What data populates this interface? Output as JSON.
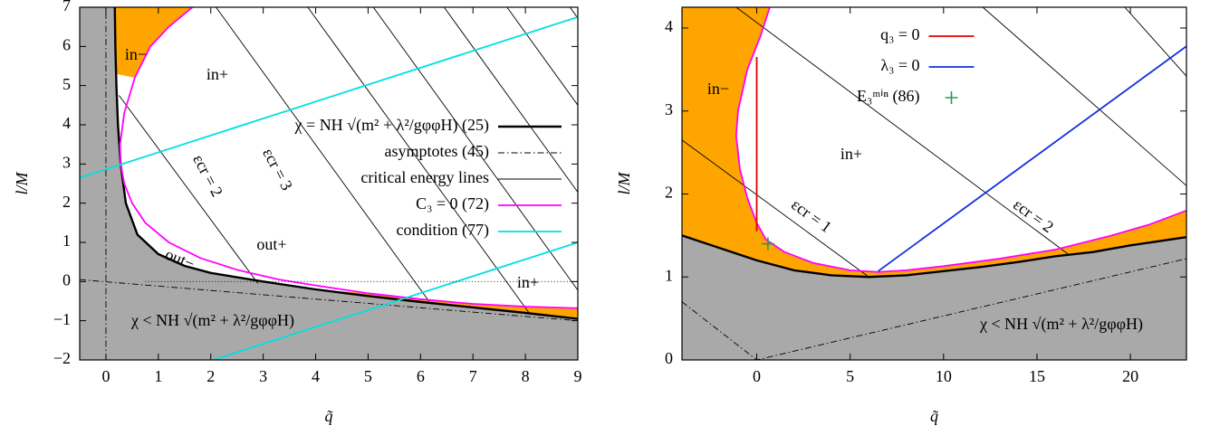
{
  "chart_data": [
    {
      "type": "line",
      "xlabel": "q̃",
      "ylabel": "l/M",
      "xlim": [
        -0.5,
        9
      ],
      "ylim": [
        -2,
        7
      ],
      "xticks": [
        0,
        1,
        2,
        3,
        4,
        5,
        6,
        7,
        8,
        9
      ],
      "yticks": [
        {
          "value": -2,
          "label": "−2"
        },
        {
          "value": -1,
          "label": "−1"
        },
        0,
        1,
        2,
        3,
        4,
        5,
        6,
        7
      ],
      "legend": "right",
      "regions": [
        {
          "color": "#ffa500",
          "x": [
            0.17,
            1.65,
            1.2,
            0.85,
            0.55,
            0.2
          ],
          "values": [
            7,
            7,
            6.5,
            6,
            5.2,
            5.3
          ]
        },
        {
          "color": "#ffa500",
          "x": [
            4.5,
            5,
            6,
            7,
            8,
            9,
            9,
            8,
            7,
            6,
            5,
            4.5
          ],
          "values": [
            -0.25,
            -0.3,
            -0.45,
            -0.57,
            -0.64,
            -0.68,
            -0.95,
            -0.8,
            -0.66,
            -0.52,
            -0.37,
            -0.29
          ]
        }
      ],
      "series": [
        {
          "name": "χ = NH √(m² + λ²/gφφH) (25)",
          "color": "#000000",
          "style": "thick",
          "fill": "#a9a9a9",
          "x": [
            0.17,
            0.18,
            0.2,
            0.23,
            0.28,
            0.38,
            0.6,
            1,
            1.5,
            2,
            3,
            4,
            5,
            6,
            7,
            8,
            9
          ],
          "values": [
            7,
            6,
            5,
            4,
            3,
            2,
            1.2,
            0.7,
            0.4,
            0.22,
            0,
            -0.2,
            -0.37,
            -0.52,
            -0.66,
            -0.8,
            -0.95
          ]
        },
        {
          "name": "asymptotes (45)",
          "color": "#000000",
          "style": "dashdot",
          "x": [
            0,
            0,
            null,
            -0.5,
            9
          ],
          "values": [
            -2,
            7,
            null,
            0.05,
            -1.0
          ]
        },
        {
          "name": "critical energy lines",
          "color": "#000000",
          "style": "thin",
          "x": [
            0.25,
            2.9,
            null,
            2.1,
            6.16,
            null,
            3.85,
            8.07,
            null,
            5.1,
            9,
            null,
            6.45,
            9,
            null,
            7.65,
            9,
            null,
            8.85,
            9
          ],
          "values": [
            4.75,
            -0.05,
            null,
            7,
            -0.5,
            null,
            7,
            -0.8,
            null,
            7,
            -0.22,
            null,
            7,
            2.28,
            null,
            7,
            4.5,
            null,
            7,
            6.72
          ]
        },
        {
          "name": "C₃ = 0 (72)",
          "color": "#ff00ff",
          "style": "medium",
          "x": [
            1.65,
            1.2,
            0.85,
            0.55,
            0.35,
            0.27,
            0.28,
            0.35,
            0.5,
            0.75,
            1.2,
            1.8,
            2.5,
            3.3,
            4,
            5,
            6,
            7,
            8,
            9
          ],
          "values": [
            7,
            6.5,
            6,
            5.2,
            4.3,
            3.5,
            3,
            2.5,
            2,
            1.5,
            1,
            0.6,
            0.3,
            0.05,
            -0.1,
            -0.3,
            -0.45,
            -0.57,
            -0.64,
            -0.68
          ]
        },
        {
          "name": "condition (77)",
          "color": "#00e0e0",
          "style": "medium",
          "x": [
            -0.5,
            9,
            null,
            2.05,
            9
          ],
          "values": [
            2.65,
            6.75,
            null,
            -2,
            1.0
          ]
        },
        {
          "color": "#000000",
          "style": "dotted",
          "x": [
            0.75,
            9
          ],
          "values": [
            0,
            0
          ]
        }
      ],
      "annotations": [
        "in−",
        "in+",
        "out+",
        "out−",
        "in+",
        "χ < NH √(m² + λ²/gφφH)",
        "εcr = 2",
        "εcr = 3"
      ]
    },
    {
      "type": "line",
      "xlabel": "q̃",
      "ylabel": "l/M",
      "xlim": [
        -4,
        23
      ],
      "ylim": [
        0,
        4.25
      ],
      "xticks": [
        0,
        5,
        10,
        15,
        20
      ],
      "yticks": [
        0,
        1,
        2,
        3,
        4
      ],
      "legend": "top",
      "regions": [
        {
          "color": "#ffa500",
          "x": [
            0.7,
            0.2,
            -0.5,
            -1,
            -1.1,
            -0.9,
            -0.5,
            0,
            0.5,
            1.5,
            3,
            5,
            6.5,
            8,
            10,
            13,
            16,
            19,
            21,
            23,
            23,
            20,
            18,
            16,
            14,
            12,
            10,
            8,
            6,
            4,
            2,
            0,
            -2,
            -4,
            -4
          ],
          "values": [
            4.25,
            3.9,
            3.5,
            3,
            2.7,
            2.3,
            1.95,
            1.65,
            1.45,
            1.3,
            1.17,
            1.08,
            1.06,
            1.08,
            1.13,
            1.22,
            1.33,
            1.5,
            1.63,
            1.8,
            1.48,
            1.38,
            1.3,
            1.25,
            1.18,
            1.12,
            1.07,
            1.02,
            1.0,
            1.02,
            1.08,
            1.2,
            1.35,
            1.5,
            4.25
          ]
        }
      ],
      "series": [
        {
          "color": "#000000",
          "style": "thick",
          "fill": "#a9a9a9",
          "x": [
            -4,
            -2,
            0,
            2,
            4,
            6,
            8,
            10,
            12,
            14,
            16,
            18,
            20,
            23
          ],
          "values": [
            1.5,
            1.35,
            1.2,
            1.08,
            1.02,
            1.0,
            1.02,
            1.07,
            1.12,
            1.18,
            1.25,
            1.3,
            1.38,
            1.48
          ]
        },
        {
          "color": "#000000",
          "style": "dashdot",
          "x": [
            -4,
            0,
            23
          ],
          "values": [
            0.7,
            0,
            1.22
          ]
        },
        {
          "color": "#000000",
          "style": "thin",
          "x": [
            -4,
            6,
            null,
            -1.1,
            16.7,
            null,
            12.1,
            23,
            null,
            19.7,
            23
          ],
          "values": [
            2.65,
            1.0,
            null,
            4.25,
            1.27,
            null,
            4.25,
            2.1,
            null,
            4.25,
            3.42
          ]
        },
        {
          "color": "#ff00ff",
          "style": "medium",
          "x": [
            0.7,
            0.2,
            -0.5,
            -1,
            -1.1,
            -0.9,
            -0.5,
            0,
            0.5,
            1.5,
            3,
            5,
            6.5,
            8,
            10,
            13,
            16,
            19,
            21,
            23
          ],
          "values": [
            4.25,
            3.9,
            3.5,
            3,
            2.7,
            2.3,
            1.95,
            1.65,
            1.45,
            1.3,
            1.17,
            1.08,
            1.06,
            1.08,
            1.13,
            1.22,
            1.33,
            1.5,
            1.63,
            1.8
          ]
        },
        {
          "name": "q₃ = 0",
          "color": "#e00000",
          "style": "medium",
          "x": [
            0,
            0
          ],
          "values": [
            1.55,
            3.65
          ]
        },
        {
          "name": "λ₃ = 0",
          "color": "#1030e0",
          "style": "medium",
          "x": [
            6.5,
            23
          ],
          "values": [
            1.07,
            3.78
          ]
        },
        {
          "name": "E₃ᵐⁱⁿ (86)",
          "color": "#2a9a5a",
          "style": "point",
          "x": [
            0.6
          ],
          "values": [
            1.4
          ]
        }
      ],
      "annotations": [
        "in−",
        "in+",
        "χ < NH √(m² + λ²/gφφH)",
        "εcr = 1",
        "εcr = 2"
      ]
    }
  ]
}
